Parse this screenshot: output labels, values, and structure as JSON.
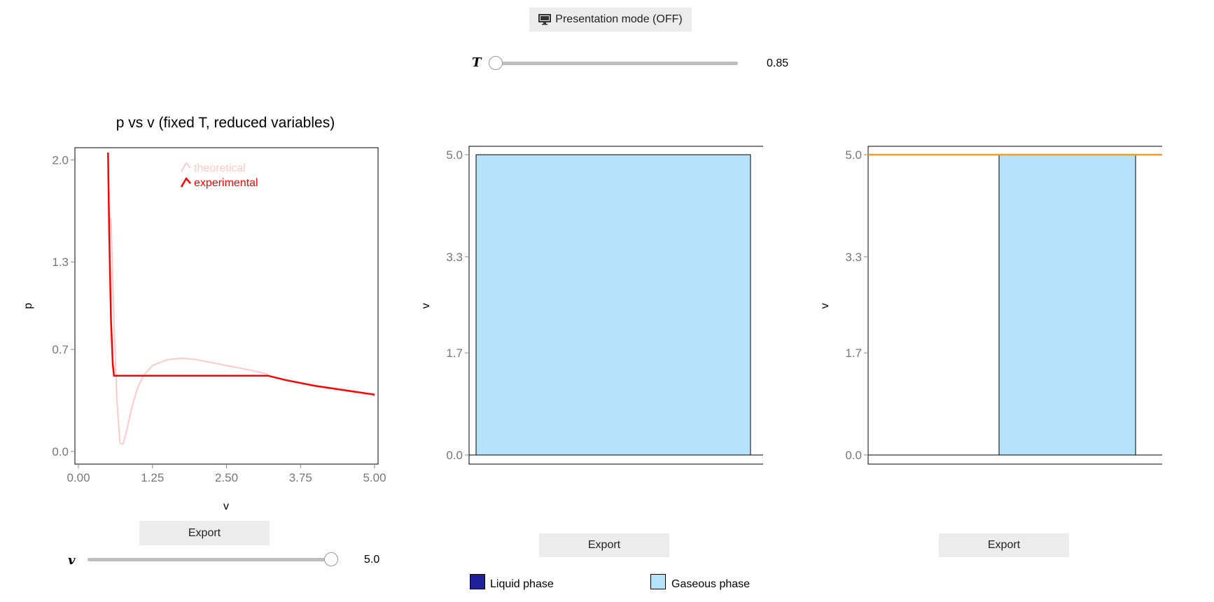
{
  "presentation_button": {
    "label": "Presentation mode (OFF)",
    "icon": "monitor-icon"
  },
  "t_slider": {
    "label": "T",
    "value": "0.85",
    "fraction": 0.0
  },
  "v_slider": {
    "label": "v",
    "value": "5.0",
    "fraction": 1.0
  },
  "chart1": {
    "title": "p vs v (fixed T, reduced variables)",
    "xlabel": "v",
    "ylabel": "p",
    "xticks": [
      "0.00",
      "1.25",
      "2.50",
      "3.75",
      "5.00"
    ],
    "yticks": [
      "0.0",
      "0.7",
      "1.3",
      "2.0"
    ],
    "legend": [
      "theoretical",
      "experimental"
    ],
    "export_label": "Export"
  },
  "chart2": {
    "ylabel": "v",
    "yticks": [
      "0.0",
      "1.7",
      "3.3",
      "5.0"
    ],
    "export_label": "Export"
  },
  "chart3": {
    "ylabel": "v",
    "yticks": [
      "0.0",
      "1.7",
      "3.3",
      "5.0"
    ],
    "export_label": "Export"
  },
  "legend": {
    "liquid": {
      "label": "Liquid phase",
      "color": "#1f1f99"
    },
    "gas": {
      "label": "Gaseous phase",
      "color": "#b6e3fb"
    }
  },
  "colors": {
    "experimental": "#ff0000",
    "theoretical": "#ffc9c9",
    "orange_line": "#f0a020"
  },
  "chart_data": [
    {
      "type": "line",
      "title": "p vs v (fixed T, reduced variables)",
      "xlabel": "v",
      "ylabel": "p",
      "xlim": [
        0,
        5
      ],
      "ylim": [
        0,
        2.05
      ],
      "series": [
        {
          "name": "theoretical",
          "x": [
            0.55,
            0.6,
            0.65,
            0.7,
            0.75,
            0.8,
            0.9,
            1.0,
            1.1,
            1.25,
            1.5,
            1.75,
            2.0,
            2.25,
            2.5,
            2.75,
            3.0,
            3.2
          ],
          "y": [
            1.6,
            0.9,
            0.35,
            0.06,
            0.05,
            0.12,
            0.3,
            0.44,
            0.52,
            0.59,
            0.63,
            0.64,
            0.63,
            0.61,
            0.59,
            0.57,
            0.55,
            0.53
          ]
        },
        {
          "name": "experimental",
          "x": [
            0.5,
            0.52,
            0.55,
            0.58,
            0.6,
            1.0,
            2.0,
            3.0,
            3.2,
            3.5,
            4.0,
            4.5,
            5.0
          ],
          "y": [
            2.05,
            1.5,
            0.9,
            0.6,
            0.52,
            0.52,
            0.52,
            0.52,
            0.52,
            0.49,
            0.45,
            0.42,
            0.39
          ]
        }
      ]
    },
    {
      "type": "bar",
      "ylabel": "v",
      "ylim": [
        0,
        5.0
      ],
      "series": [
        {
          "name": "Gaseous phase",
          "values": [
            5.0
          ]
        }
      ]
    },
    {
      "type": "bar",
      "ylabel": "v",
      "ylim": [
        0,
        5.0
      ],
      "series": [
        {
          "name": "Gaseous phase",
          "values": [
            5.0
          ]
        }
      ],
      "reference_line": 5.0
    }
  ]
}
